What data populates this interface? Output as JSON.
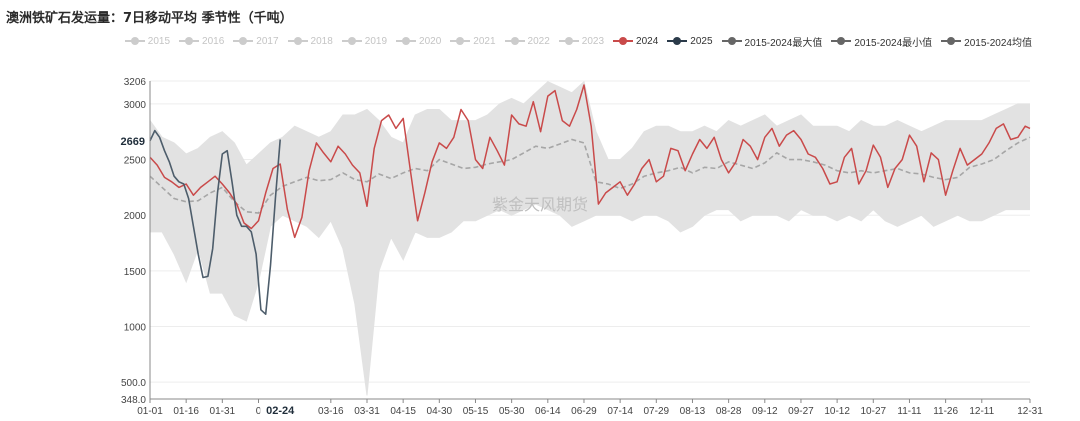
{
  "title": "澳洲铁矿石发运量：7日移动平均 季节性（千吨）",
  "watermark": "紫金天风期货",
  "colors": {
    "s2024": "#c94a4a",
    "s2025": "#2b3b4a",
    "band": "#e2e2e2",
    "mean": "#a6a6a6",
    "inactive": "#cccccc",
    "axis": "#888888",
    "grid": "#ededed"
  },
  "legend": [
    {
      "label": "2015",
      "active": false,
      "color": "#cccccc"
    },
    {
      "label": "2016",
      "active": false,
      "color": "#cccccc"
    },
    {
      "label": "2017",
      "active": false,
      "color": "#cccccc"
    },
    {
      "label": "2018",
      "active": false,
      "color": "#cccccc"
    },
    {
      "label": "2019",
      "active": false,
      "color": "#cccccc"
    },
    {
      "label": "2020",
      "active": false,
      "color": "#cccccc"
    },
    {
      "label": "2021",
      "active": false,
      "color": "#cccccc"
    },
    {
      "label": "2022",
      "active": false,
      "color": "#cccccc"
    },
    {
      "label": "2023",
      "active": false,
      "color": "#cccccc"
    },
    {
      "label": "2024",
      "active": true,
      "color": "#c94a4a"
    },
    {
      "label": "2025",
      "active": true,
      "color": "#2b3b4a"
    },
    {
      "label": "2015-2024最大值",
      "active": true,
      "color": "#666666"
    },
    {
      "label": "2015-2024最小值",
      "active": true,
      "color": "#666666"
    },
    {
      "label": "2015-2024均值",
      "active": true,
      "color": "#666666"
    }
  ],
  "chart_data": {
    "type": "line",
    "title": "澳洲铁矿石发运量：7日移动平均 季节性（千吨）",
    "xlabel": "",
    "ylabel": "",
    "ylim": [
      348,
      3206
    ],
    "yticks": [
      348,
      500,
      1000,
      1500,
      2000,
      2500,
      3000,
      3206
    ],
    "ytick_labels": [
      "348.0",
      "500.0",
      "1000",
      "1500",
      "2000",
      "2500",
      "3000",
      "3206"
    ],
    "y_marker": {
      "value": 2669,
      "label": "2669"
    },
    "x_marker": {
      "value": 55,
      "label": "02-24"
    },
    "xticks": [
      {
        "day": 1,
        "label": "01-01"
      },
      {
        "day": 16,
        "label": "01-16"
      },
      {
        "day": 31,
        "label": "01-31"
      },
      {
        "day": 46,
        "label": "0"
      },
      {
        "day": 76,
        "label": "03-16"
      },
      {
        "day": 91,
        "label": "03-31"
      },
      {
        "day": 106,
        "label": "04-15"
      },
      {
        "day": 121,
        "label": "04-30"
      },
      {
        "day": 136,
        "label": "05-15"
      },
      {
        "day": 151,
        "label": "05-30"
      },
      {
        "day": 166,
        "label": "06-14"
      },
      {
        "day": 181,
        "label": "06-29"
      },
      {
        "day": 196,
        "label": "07-14"
      },
      {
        "day": 211,
        "label": "07-29"
      },
      {
        "day": 226,
        "label": "08-13"
      },
      {
        "day": 241,
        "label": "08-28"
      },
      {
        "day": 256,
        "label": "09-12"
      },
      {
        "day": 271,
        "label": "09-27"
      },
      {
        "day": 286,
        "label": "10-12"
      },
      {
        "day": 301,
        "label": "10-27"
      },
      {
        "day": 316,
        "label": "11-11"
      },
      {
        "day": 331,
        "label": "11-26"
      },
      {
        "day": 346,
        "label": "12-11"
      },
      {
        "day": 366,
        "label": "12-31"
      }
    ],
    "grid": true,
    "legend_position": "top-right",
    "series": [
      {
        "name": "2024",
        "x": [
          1,
          4,
          7,
          10,
          13,
          16,
          19,
          22,
          25,
          28,
          31,
          34,
          37,
          40,
          43,
          46,
          49,
          52,
          55,
          58,
          61,
          64,
          67,
          70,
          73,
          76,
          79,
          82,
          85,
          88,
          91,
          94,
          97,
          100,
          103,
          106,
          109,
          112,
          115,
          118,
          121,
          124,
          127,
          130,
          133,
          136,
          139,
          142,
          145,
          148,
          151,
          154,
          157,
          160,
          163,
          166,
          169,
          172,
          175,
          178,
          181,
          184,
          187,
          190,
          193,
          196,
          199,
          202,
          205,
          208,
          211,
          214,
          217,
          220,
          223,
          226,
          229,
          232,
          235,
          238,
          241,
          244,
          247,
          250,
          253,
          256,
          259,
          262,
          265,
          268,
          271,
          274,
          277,
          280,
          283,
          286,
          289,
          292,
          295,
          298,
          301,
          304,
          307,
          310,
          313,
          316,
          319,
          322,
          325,
          328,
          331,
          334,
          337,
          340,
          343,
          346,
          349,
          352,
          355,
          358,
          361,
          364,
          366
        ],
        "y": [
          2520,
          2450,
          2340,
          2300,
          2250,
          2280,
          2180,
          2250,
          2300,
          2350,
          2280,
          2200,
          2100,
          1930,
          1880,
          1950,
          2200,
          2420,
          2460,
          2050,
          1800,
          1980,
          2400,
          2650,
          2560,
          2480,
          2620,
          2550,
          2450,
          2380,
          2080,
          2600,
          2850,
          2900,
          2780,
          2870,
          2400,
          1950,
          2200,
          2480,
          2650,
          2600,
          2700,
          2950,
          2850,
          2500,
          2420,
          2700,
          2580,
          2450,
          2900,
          2820,
          2800,
          3020,
          2750,
          3070,
          3120,
          2850,
          2800,
          2950,
          3170,
          2800,
          2100,
          2200,
          2250,
          2300,
          2180,
          2280,
          2420,
          2500,
          2300,
          2350,
          2600,
          2580,
          2400,
          2550,
          2680,
          2600,
          2700,
          2500,
          2380,
          2480,
          2680,
          2620,
          2500,
          2700,
          2780,
          2620,
          2720,
          2760,
          2680,
          2550,
          2520,
          2420,
          2280,
          2300,
          2520,
          2600,
          2280,
          2400,
          2630,
          2520,
          2250,
          2420,
          2500,
          2720,
          2620,
          2300,
          2560,
          2500,
          2180,
          2400,
          2600,
          2450,
          2500,
          2550,
          2650,
          2780,
          2820,
          2680,
          2700,
          2800,
          2780
        ]
      },
      {
        "name": "2025",
        "x": [
          1,
          3,
          5,
          7,
          9,
          11,
          13,
          15,
          17,
          19,
          21,
          23,
          25,
          27,
          29,
          31,
          33,
          35,
          37,
          39,
          41,
          43,
          45,
          47,
          49,
          51,
          53,
          55
        ],
        "y": [
          2669,
          2760,
          2700,
          2580,
          2480,
          2350,
          2300,
          2280,
          2150,
          1900,
          1650,
          1440,
          1450,
          1700,
          2200,
          2550,
          2580,
          2300,
          2000,
          1900,
          1900,
          1850,
          1650,
          1150,
          1110,
          1550,
          2150,
          2680
        ]
      },
      {
        "name": "2015-2024最大值",
        "x": [
          1,
          6,
          11,
          16,
          21,
          26,
          31,
          36,
          41,
          46,
          51,
          56,
          61,
          66,
          71,
          76,
          81,
          86,
          91,
          96,
          101,
          106,
          111,
          116,
          121,
          126,
          131,
          136,
          141,
          146,
          151,
          156,
          161,
          166,
          171,
          176,
          181,
          186,
          191,
          196,
          201,
          206,
          211,
          216,
          221,
          226,
          231,
          236,
          241,
          246,
          251,
          256,
          261,
          266,
          271,
          276,
          281,
          286,
          291,
          296,
          301,
          306,
          311,
          316,
          321,
          326,
          331,
          336,
          341,
          346,
          351,
          356,
          361,
          366
        ],
        "y": [
          2850,
          2700,
          2650,
          2550,
          2600,
          2700,
          2750,
          2650,
          2450,
          2550,
          2650,
          2700,
          2800,
          2750,
          2700,
          2750,
          2900,
          2900,
          2950,
          2850,
          2700,
          2650,
          2900,
          2950,
          2950,
          2850,
          2850,
          2850,
          2900,
          3000,
          3050,
          3000,
          3100,
          3200,
          3150,
          3100,
          3200,
          2750,
          2500,
          2500,
          2600,
          2750,
          2800,
          2800,
          2750,
          2750,
          2800,
          2750,
          2850,
          2800,
          2850,
          2900,
          2800,
          2850,
          2900,
          2800,
          2800,
          2800,
          2750,
          2850,
          2800,
          2800,
          2850,
          2800,
          2750,
          2800,
          2850,
          2850,
          2850,
          2850,
          2900,
          2950,
          3000,
          3000
        ]
      },
      {
        "name": "2015-2024最小值",
        "x": [
          1,
          6,
          11,
          16,
          21,
          26,
          31,
          36,
          41,
          46,
          51,
          56,
          61,
          66,
          71,
          76,
          81,
          86,
          91,
          96,
          101,
          106,
          111,
          116,
          121,
          126,
          131,
          136,
          141,
          146,
          151,
          156,
          161,
          166,
          171,
          176,
          181,
          186,
          191,
          196,
          201,
          206,
          211,
          216,
          221,
          226,
          231,
          236,
          241,
          246,
          251,
          256,
          261,
          266,
          271,
          276,
          281,
          286,
          291,
          296,
          301,
          306,
          311,
          316,
          321,
          326,
          331,
          336,
          341,
          346,
          351,
          356,
          361,
          366
        ],
        "y": [
          1850,
          1850,
          1650,
          1400,
          1700,
          1300,
          1300,
          1100,
          1050,
          1400,
          1900,
          2000,
          1950,
          1900,
          1800,
          1950,
          1700,
          1200,
          380,
          1500,
          1800,
          1600,
          1850,
          1800,
          1800,
          1850,
          1950,
          1950,
          2000,
          2050,
          2000,
          2050,
          2100,
          2050,
          2000,
          1900,
          1950,
          2000,
          2000,
          2000,
          1950,
          2000,
          2000,
          1950,
          1850,
          1900,
          2000,
          2050,
          2050,
          1950,
          2000,
          2000,
          2000,
          1950,
          2050,
          2000,
          2000,
          1950,
          2000,
          1950,
          2050,
          1950,
          1900,
          1950,
          2000,
          1900,
          1950,
          2000,
          1950,
          1950,
          2000,
          2050,
          2050,
          2050
        ]
      },
      {
        "name": "2015-2024均值",
        "x": [
          1,
          6,
          11,
          16,
          21,
          26,
          31,
          36,
          41,
          46,
          51,
          56,
          61,
          66,
          71,
          76,
          81,
          86,
          91,
          96,
          101,
          106,
          111,
          116,
          121,
          126,
          131,
          136,
          141,
          146,
          151,
          156,
          161,
          166,
          171,
          176,
          181,
          186,
          191,
          196,
          201,
          206,
          211,
          216,
          221,
          226,
          231,
          236,
          241,
          246,
          251,
          256,
          261,
          266,
          271,
          276,
          281,
          286,
          291,
          296,
          301,
          306,
          311,
          316,
          321,
          326,
          331,
          336,
          341,
          346,
          351,
          356,
          361,
          366
        ],
        "y": [
          2350,
          2250,
          2150,
          2120,
          2130,
          2200,
          2250,
          2120,
          2030,
          2020,
          2180,
          2260,
          2300,
          2340,
          2310,
          2320,
          2380,
          2320,
          2300,
          2370,
          2330,
          2380,
          2420,
          2400,
          2500,
          2460,
          2420,
          2430,
          2460,
          2480,
          2500,
          2560,
          2620,
          2600,
          2640,
          2680,
          2650,
          2300,
          2280,
          2240,
          2280,
          2350,
          2380,
          2400,
          2430,
          2380,
          2430,
          2420,
          2480,
          2450,
          2420,
          2470,
          2560,
          2500,
          2500,
          2480,
          2450,
          2400,
          2380,
          2400,
          2380,
          2400,
          2420,
          2380,
          2370,
          2340,
          2320,
          2340,
          2430,
          2460,
          2500,
          2580,
          2650,
          2700
        ]
      }
    ]
  }
}
